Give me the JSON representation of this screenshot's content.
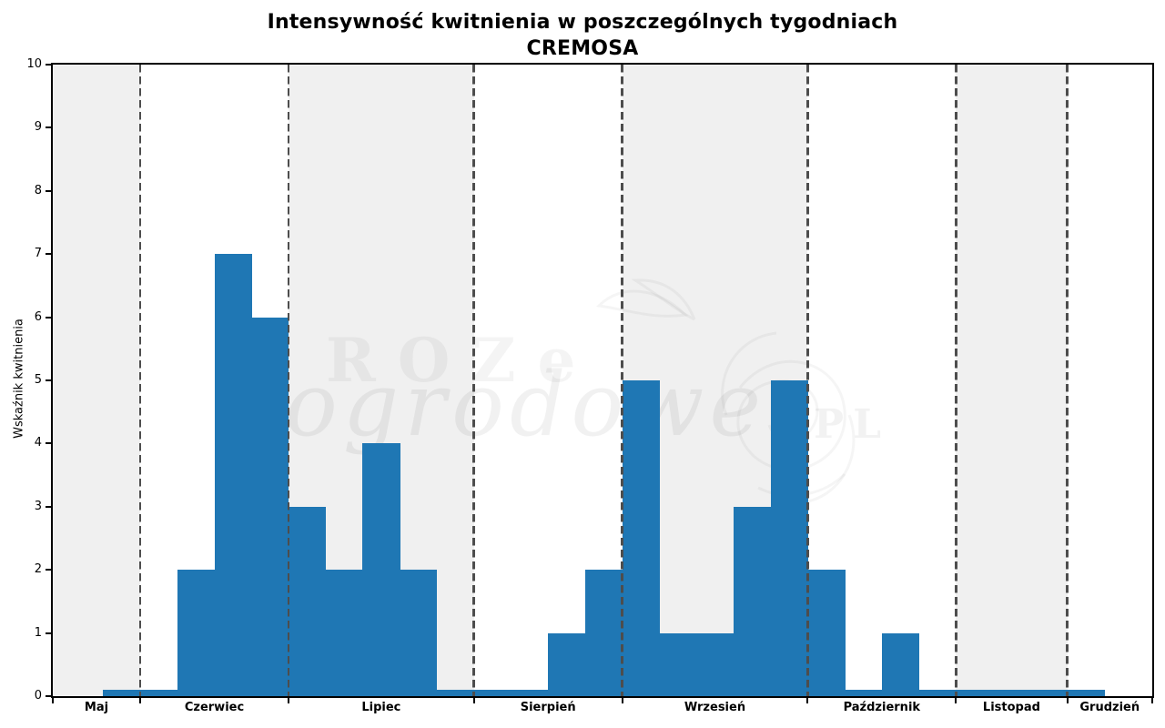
{
  "title": {
    "line1": "Intensywność kwitnienia w poszczególnych tygodniach",
    "line2": "CREMOSA"
  },
  "watermark": {
    "part1": "ROZe",
    "part2": "ogrodowe",
    "part3": "PL"
  },
  "chart_data": {
    "type": "bar",
    "title": "Intensywność kwitnienia w poszczególnych tygodniach CREMOSA",
    "xlabel": "",
    "ylabel": "Wskaźnik kwitnienia",
    "ylim": [
      0,
      10
    ],
    "yticks": [
      0,
      1,
      2,
      3,
      4,
      5,
      6,
      7,
      8,
      9,
      10
    ],
    "grid": "off",
    "legend": "none",
    "bar_unit": "week",
    "weekly_values": [
      0.1,
      0.1,
      2,
      7,
      6,
      3,
      2,
      4,
      2,
      0.1,
      0.1,
      0.1,
      1,
      2,
      5,
      1,
      1,
      3,
      5,
      2,
      0.1,
      1,
      0.1,
      0.1,
      0.1,
      0.1,
      0.1
    ],
    "months": [
      {
        "label": "Maj",
        "weeks": 1,
        "shaded": true
      },
      {
        "label": "Czerwiec",
        "weeks": 4,
        "shaded": false
      },
      {
        "label": "Lipiec",
        "weeks": 5,
        "shaded": true
      },
      {
        "label": "Sierpień",
        "weeks": 4,
        "shaded": false
      },
      {
        "label": "Wrzesień",
        "weeks": 5,
        "shaded": true
      },
      {
        "label": "Październik",
        "weeks": 4,
        "shaded": false
      },
      {
        "label": "Listopad",
        "weeks": 3,
        "shaded": true
      },
      {
        "label": "Grudzień",
        "weeks": 1,
        "shaded": false
      }
    ],
    "colors": {
      "bar": "#1f77b4",
      "band": "#f0f0f0",
      "boundary": "#4d4d4d",
      "axis": "#000000"
    }
  }
}
